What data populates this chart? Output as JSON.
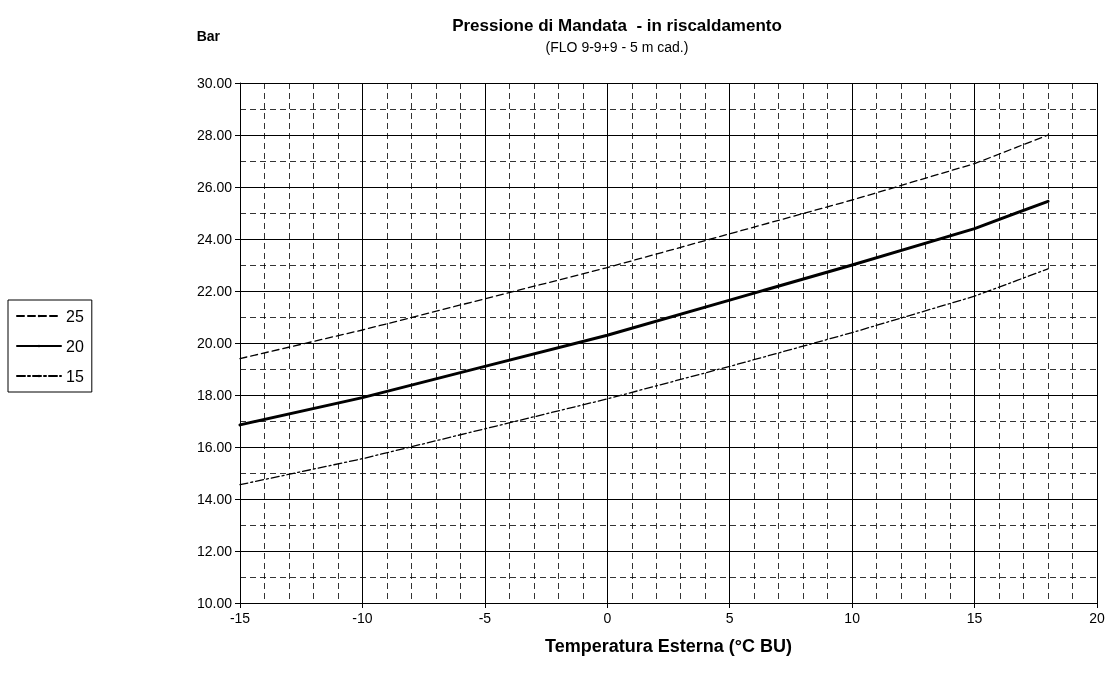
{
  "chart_data": {
    "type": "line",
    "title": "Pressione di Mandata  - in riscaldamento",
    "subtitle": "(FLO 9-9+9 - 5 m cad.)",
    "xlabel": "Temperatura Esterna (°C BU)",
    "ylabel": "Bar",
    "x": [
      -15,
      -10,
      -5,
      0,
      5,
      10,
      15,
      18
    ],
    "series": [
      {
        "name": "25",
        "color": "#000000",
        "line_style": "dashed",
        "values": [
          19.4,
          20.5,
          21.7,
          22.9,
          24.2,
          25.5,
          26.9,
          28.0
        ]
      },
      {
        "name": "20",
        "color": "#000000",
        "line_style": "solid",
        "values": [
          16.85,
          17.9,
          19.1,
          20.3,
          21.65,
          23.0,
          24.4,
          25.45
        ]
      },
      {
        "name": "15",
        "color": "#000000",
        "line_style": "dashdot",
        "values": [
          14.55,
          15.55,
          16.7,
          17.85,
          19.1,
          20.4,
          21.8,
          22.85
        ]
      }
    ],
    "xlim": [
      -15,
      20
    ],
    "xticks": [
      -15,
      -10,
      -5,
      0,
      5,
      10,
      15,
      20
    ],
    "ylim": [
      10,
      30
    ],
    "yticks": [
      {
        "value": 10,
        "label": "10.00"
      },
      {
        "value": 12,
        "label": "12.00"
      },
      {
        "value": 14,
        "label": "14.00"
      },
      {
        "value": 16,
        "label": "16.00"
      },
      {
        "value": 18,
        "label": "18.00"
      },
      {
        "value": 20,
        "label": "20.00"
      },
      {
        "value": 22,
        "label": "22.00"
      },
      {
        "value": 24,
        "label": "24.00"
      },
      {
        "value": 26,
        "label": "26.00"
      },
      {
        "value": 28,
        "label": "28.00"
      },
      {
        "value": 30,
        "label": "30.00"
      }
    ],
    "grid": true,
    "legend": "left",
    "marker": "none"
  }
}
